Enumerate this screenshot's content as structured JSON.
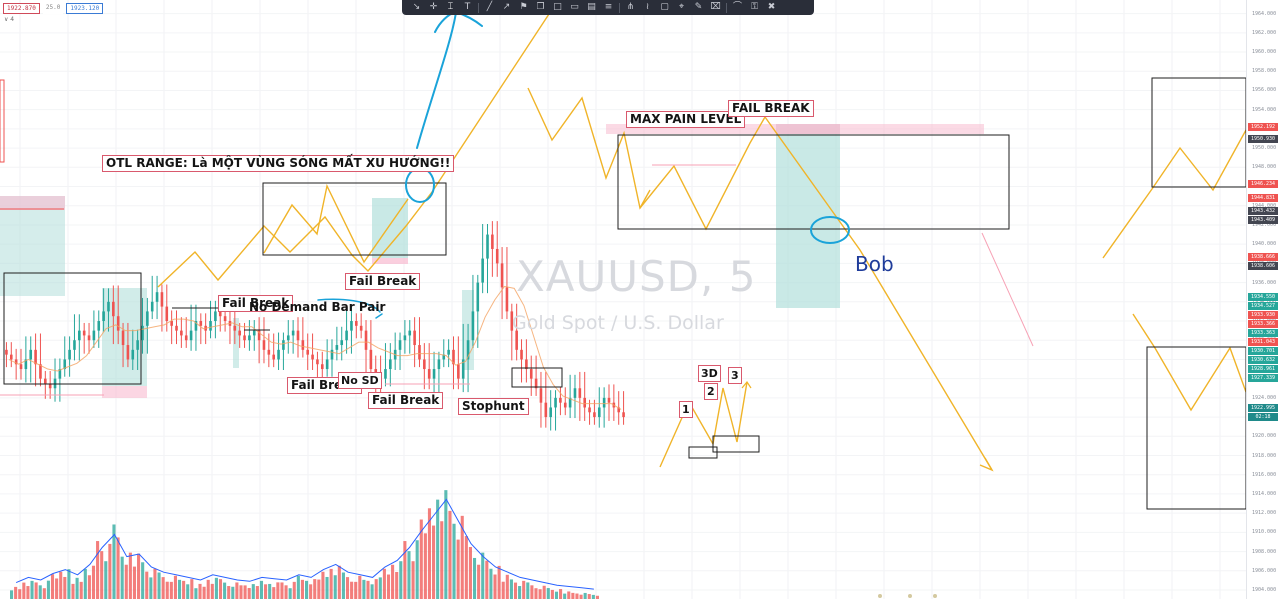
{
  "header": {
    "price_left": "1922.870",
    "spread": "25.0",
    "price_right": "1923.120",
    "sub": "∨ 4"
  },
  "toolbar": {
    "icons": [
      "cursor-icon",
      "cross-icon",
      "text-cursor-icon",
      "text-icon",
      "trend-line-icon",
      "arrow-icon",
      "flag-icon",
      "callout-icon",
      "note-icon",
      "balloon-icon",
      "price-label-icon",
      "fib-icon",
      "fork-icon",
      "path-icon",
      "rectangle-icon",
      "ruler-icon",
      "brush-icon",
      "eraser-icon",
      "curve-icon",
      "lock-icon",
      "trash-icon"
    ],
    "glyphs": [
      "↘",
      "✛",
      "⌶",
      "T",
      "╱",
      "↗",
      "⚑",
      "❐",
      "□",
      "▭",
      "▤",
      "≡",
      "⋔",
      "≀",
      "▢",
      "⌖",
      "✎",
      "⌧",
      "⌒",
      "⚿",
      "✖"
    ]
  },
  "watermark": {
    "symbol": "XAUUSD, 5",
    "description": "Gold Spot / U.S. Dollar"
  },
  "annotations": {
    "otl_range": "OTL RANGE: Là MỘT VÙNG SÓNG MẤT XU HƯỚNG!!",
    "fail_break_1": "Fail Break",
    "fail_break_2": "Fail Break",
    "no_demand": "No Demand Bar Pair",
    "fail_break_3": "Fail Break",
    "no_sd": "No SD",
    "fail_break_4": "Fail Break",
    "stophunt": "Stophunt",
    "max_pain": "MAX PAIN LEVEL",
    "fail_break_caps": "FAIL BREAK",
    "wave_1": "1",
    "wave_2": "2",
    "wave_3d": "3D",
    "wave_3": "3",
    "bob": "Bob"
  },
  "colors": {
    "up": "#26a69a",
    "down": "#ef5350",
    "wave": "#f0b429",
    "pen": "#1aa3d9",
    "zone_green": "#b2dfdb",
    "zone_red": "#f8bbd0",
    "price_red": "#ef5350",
    "price_dark": "#434651",
    "price_green": "#26a69a",
    "price_teal": "#1f8a8a"
  },
  "price_axis": {
    "ticks": [
      "1964.000",
      "1962.000",
      "1960.000",
      "1958.000",
      "1956.000",
      "1954.000",
      "1952.000",
      "1950.000",
      "1948.000",
      "1946.000",
      "1944.000",
      "1942.000",
      "1940.000",
      "1938.000",
      "1936.000",
      "1934.000",
      "1932.000",
      "1930.000",
      "1928.000",
      "1926.000",
      "1924.000",
      "1922.000",
      "1920.000",
      "1918.000",
      "1916.000",
      "1914.000",
      "1912.000",
      "1910.000",
      "1908.000",
      "1906.000",
      "1904.000"
    ],
    "tags": [
      {
        "value": "1952.192",
        "color": "#ef5350"
      },
      {
        "value": "1950.930",
        "color": "#434651"
      },
      {
        "value": "1946.234",
        "color": "#ef5350"
      },
      {
        "value": "1944.831",
        "color": "#ef5350"
      },
      {
        "value": "1943.432",
        "color": "#434651"
      },
      {
        "value": "1943.409",
        "color": "#434651"
      },
      {
        "value": "1938.666",
        "color": "#ef5350"
      },
      {
        "value": "1938.606",
        "color": "#434651"
      },
      {
        "value": "1934.550",
        "color": "#26a69a"
      },
      {
        "value": "1934.527",
        "color": "#26a69a"
      },
      {
        "value": "1933.930",
        "color": "#ef5350"
      },
      {
        "value": "1933.366",
        "color": "#ef5350"
      },
      {
        "value": "1933.363",
        "color": "#26a69a"
      },
      {
        "value": "1931.043",
        "color": "#ef5350"
      },
      {
        "value": "1930.701",
        "color": "#26a69a"
      },
      {
        "value": "1930.632",
        "color": "#26a69a"
      },
      {
        "value": "1928.961",
        "color": "#26a69a"
      },
      {
        "value": "1927.339",
        "color": "#26a69a"
      },
      {
        "value": "1922.995",
        "color": "#1f8a8a"
      },
      {
        "value": "02:18",
        "color": "#1f8a8a"
      }
    ]
  },
  "chart_data": {
    "type": "candlestick",
    "title": "XAUUSD, 5",
    "subtitle": "Gold Spot / U.S. Dollar",
    "ylim": [
      1904,
      1965
    ],
    "grid": true,
    "series": [
      {
        "name": "price_close",
        "values": [
          1928,
          1927,
          1929,
          1926,
          1925,
          1927,
          1929,
          1931,
          1930,
          1932,
          1934,
          1931,
          1928,
          1930,
          1933,
          1935,
          1932,
          1931,
          1930,
          1932,
          1931,
          1933,
          1932,
          1931,
          1930,
          1931,
          1929,
          1928,
          1930,
          1931,
          1929,
          1928,
          1927,
          1929,
          1930,
          1932,
          1931,
          1927,
          1926,
          1928,
          1930,
          1931,
          1928,
          1926,
          1928,
          1929,
          1926,
          1930,
          1936,
          1941,
          1938,
          1933,
          1929,
          1927,
          1925,
          1922,
          1924,
          1923,
          1925,
          1923,
          1922,
          1924,
          1923,
          1922
        ]
      },
      {
        "name": "volume",
        "values": [
          8,
          12,
          10,
          15,
          18,
          14,
          22,
          35,
          45,
          28,
          30,
          20,
          16,
          14,
          12,
          10,
          14,
          12,
          10,
          9,
          12,
          11,
          10,
          14,
          12,
          18,
          22,
          16,
          14,
          12,
          20,
          25,
          35,
          48,
          60,
          72,
          55,
          38,
          28,
          20,
          16,
          12,
          10,
          8,
          6,
          5,
          4,
          3
        ]
      }
    ],
    "annotations": [
      "OTL RANGE",
      "Fail Break",
      "No Demand Bar Pair",
      "Fail Break",
      "No SD",
      "Fail Break",
      "Stophunt",
      "MAX PAIN LEVEL",
      "FAIL BREAK",
      "Bob",
      "1",
      "2",
      "3D",
      "3"
    ]
  }
}
